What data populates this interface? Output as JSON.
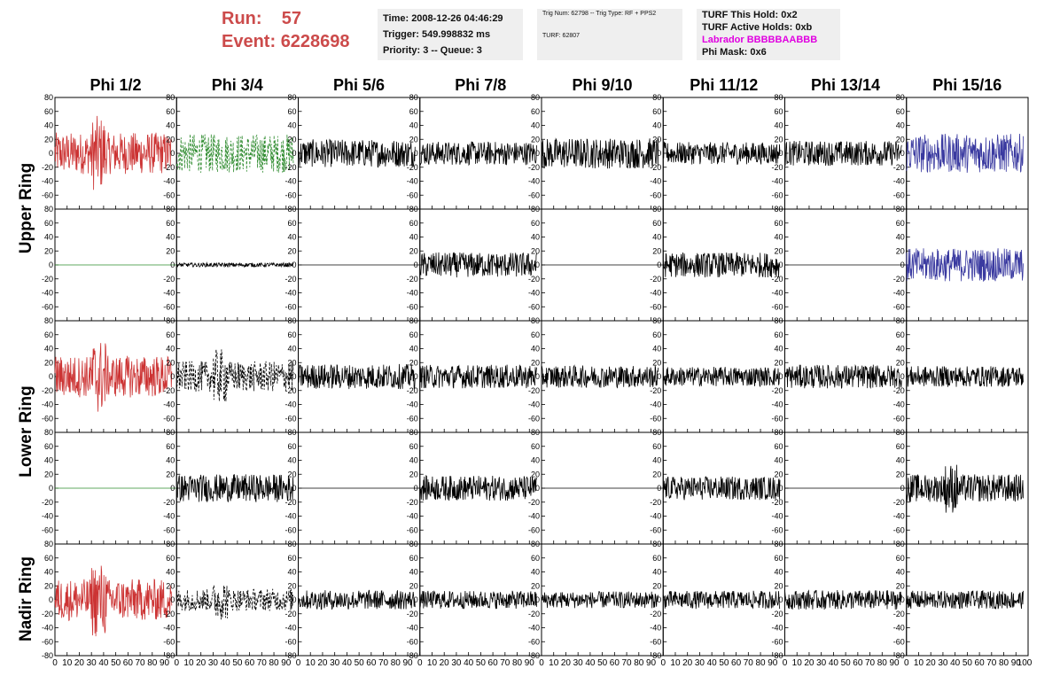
{
  "header": {
    "run_label": "Run:",
    "run_value": "57",
    "event_label": "Event:",
    "event_value": "6228698"
  },
  "info_panel": {
    "time": "Time: 2008-12-26 04:46:29",
    "trigger": "Trigger: 549.998832 ms",
    "priority": "Priority: 3 -- Queue: 3"
  },
  "trig_panel": {
    "trig_line": "Trig Num: 62798 -- Trig Type: RF + PPS2",
    "turf_line": "TURF: 62807"
  },
  "turf_panel": {
    "this_hold": "TURF This Hold: 0x2",
    "active_holds": "TURF Active Holds: 0xb",
    "labrador": "Labrador BBBBBAABBB",
    "phi_mask": "Phi Mask: 0x6"
  },
  "colors": {
    "red": "#cc3333",
    "green": "#2e8b2e",
    "blue": "#3a3aa0",
    "black": "#000000",
    "labrador": "#e000e0",
    "title": "#cc4b4b"
  },
  "chart_data": {
    "type": "line",
    "columns": [
      "Phi 1/2",
      "Phi 3/4",
      "Phi 5/6",
      "Phi 7/8",
      "Phi 9/10",
      "Phi 11/12",
      "Phi 13/14",
      "Phi 15/16"
    ],
    "row_groups": [
      "Upper Ring",
      "Lower Ring",
      "Nadir Ring"
    ],
    "xlim": [
      0,
      100
    ],
    "ylim": [
      -80,
      80
    ],
    "x_ticks": [
      0,
      10,
      20,
      30,
      40,
      50,
      60,
      70,
      80,
      90
    ],
    "y_ticks": [
      -80,
      -60,
      -40,
      -20,
      0,
      20,
      40,
      60,
      80
    ],
    "panels": [
      [
        {
          "color": "red",
          "amp": 30,
          "style": "solid",
          "flat": false,
          "spike": true
        },
        {
          "color": "green",
          "amp": 28,
          "style": "dashed",
          "flat": false,
          "spike": false
        },
        {
          "color": "black",
          "amp": 20,
          "style": "solid",
          "flat": false,
          "spike": false
        },
        {
          "color": "black",
          "amp": 17,
          "style": "solid",
          "flat": false,
          "spike": false
        },
        {
          "color": "black",
          "amp": 22,
          "style": "solid",
          "flat": false,
          "spike": false
        },
        {
          "color": "black",
          "amp": 16,
          "style": "solid",
          "flat": false,
          "spike": false
        },
        {
          "color": "black",
          "amp": 18,
          "style": "solid",
          "flat": false,
          "spike": false
        },
        {
          "color": "blue",
          "amp": 28,
          "style": "solid",
          "flat": false,
          "spike": false
        }
      ],
      [
        {
          "color": "green",
          "amp": 0,
          "style": "solid",
          "flat": true,
          "spike": false
        },
        {
          "color": "black",
          "amp": 3,
          "style": "solid",
          "flat": false,
          "spike": false
        },
        {
          "color": "black",
          "amp": 0,
          "style": "solid",
          "flat": true,
          "spike": false
        },
        {
          "color": "black",
          "amp": 18,
          "style": "solid",
          "flat": false,
          "spike": false
        },
        {
          "color": "black",
          "amp": 0,
          "style": "solid",
          "flat": true,
          "spike": false
        },
        {
          "color": "black",
          "amp": 18,
          "style": "solid",
          "flat": false,
          "spike": false
        },
        {
          "color": "black",
          "amp": 0,
          "style": "solid",
          "flat": true,
          "spike": false
        },
        {
          "color": "blue",
          "amp": 24,
          "style": "solid",
          "flat": false,
          "spike": false
        }
      ],
      [
        {
          "color": "red",
          "amp": 30,
          "style": "solid",
          "flat": false,
          "spike": true
        },
        {
          "color": "black",
          "amp": 22,
          "style": "dashed",
          "flat": false,
          "spike": true
        },
        {
          "color": "black",
          "amp": 18,
          "style": "solid",
          "flat": false,
          "spike": false
        },
        {
          "color": "black",
          "amp": 17,
          "style": "solid",
          "flat": false,
          "spike": false
        },
        {
          "color": "black",
          "amp": 16,
          "style": "solid",
          "flat": false,
          "spike": false
        },
        {
          "color": "black",
          "amp": 14,
          "style": "solid",
          "flat": false,
          "spike": false
        },
        {
          "color": "black",
          "amp": 17,
          "style": "solid",
          "flat": false,
          "spike": false
        },
        {
          "color": "black",
          "amp": 15,
          "style": "solid",
          "flat": false,
          "spike": false
        }
      ],
      [
        {
          "color": "green",
          "amp": 0,
          "style": "solid",
          "flat": true,
          "spike": false
        },
        {
          "color": "black",
          "amp": 20,
          "style": "solid",
          "flat": false,
          "spike": false
        },
        {
          "color": "black",
          "amp": 0,
          "style": "solid",
          "flat": true,
          "spike": false
        },
        {
          "color": "black",
          "amp": 18,
          "style": "solid",
          "flat": false,
          "spike": false
        },
        {
          "color": "black",
          "amp": 0,
          "style": "solid",
          "flat": true,
          "spike": false
        },
        {
          "color": "black",
          "amp": 17,
          "style": "solid",
          "flat": false,
          "spike": false
        },
        {
          "color": "black",
          "amp": 0,
          "style": "solid",
          "flat": true,
          "spike": false
        },
        {
          "color": "black",
          "amp": 20,
          "style": "solid",
          "flat": false,
          "spike": true
        }
      ],
      [
        {
          "color": "red",
          "amp": 30,
          "style": "solid",
          "flat": false,
          "spike": true
        },
        {
          "color": "black",
          "amp": 16,
          "style": "dashed",
          "flat": false,
          "spike": true
        },
        {
          "color": "black",
          "amp": 14,
          "style": "solid",
          "flat": false,
          "spike": false
        },
        {
          "color": "black",
          "amp": 13,
          "style": "solid",
          "flat": false,
          "spike": false
        },
        {
          "color": "black",
          "amp": 12,
          "style": "solid",
          "flat": false,
          "spike": false
        },
        {
          "color": "black",
          "amp": 13,
          "style": "solid",
          "flat": false,
          "spike": false
        },
        {
          "color": "black",
          "amp": 14,
          "style": "solid",
          "flat": false,
          "spike": false
        },
        {
          "color": "black",
          "amp": 13,
          "style": "solid",
          "flat": false,
          "spike": false
        }
      ]
    ]
  }
}
